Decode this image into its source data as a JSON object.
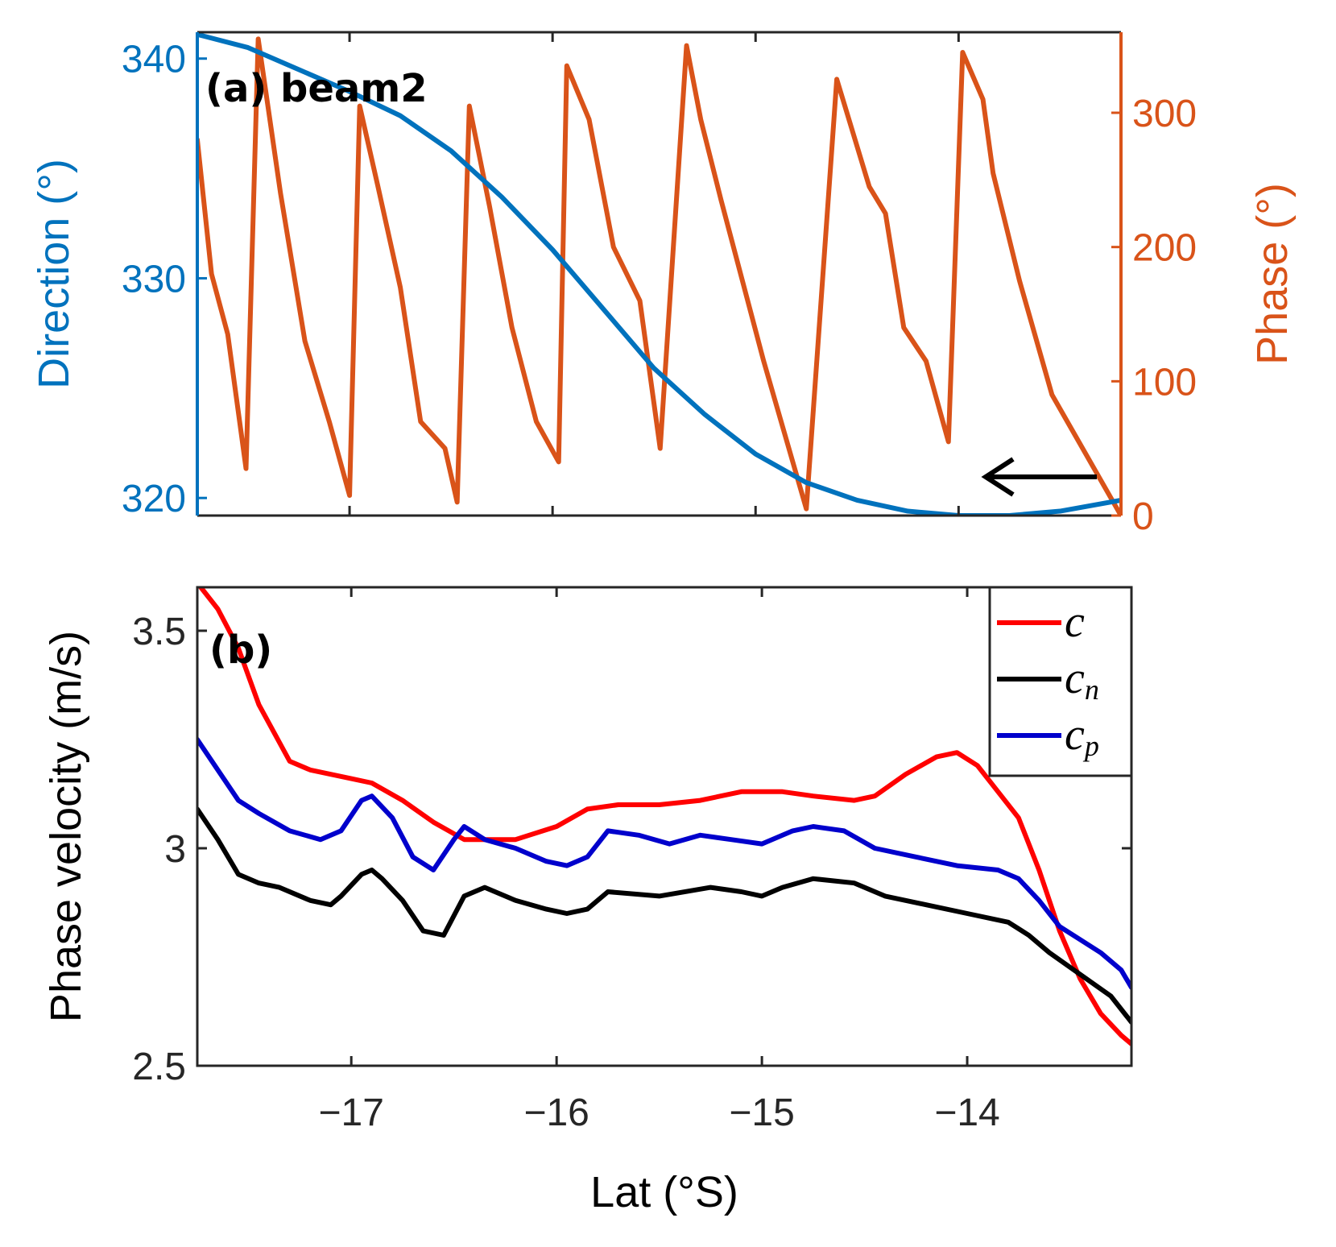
{
  "chart_data": [
    {
      "type": "line",
      "panel_label": "(a) beam2",
      "xlim": [
        -17.75,
        -13.2
      ],
      "colors": {
        "direction": "#0072BD",
        "phase": "#D95319",
        "arrow": "#000000"
      },
      "annotation": "arrow pointing left",
      "left_axis": {
        "label": "Direction (°)",
        "ylim": [
          319.2,
          341.2
        ],
        "ticks": [
          320,
          330,
          340
        ],
        "tick_labels": [
          "320",
          "330",
          "340"
        ]
      },
      "right_axis": {
        "label": "Phase (°)",
        "ylim": [
          0,
          360
        ],
        "ticks": [
          0,
          100,
          200,
          300
        ],
        "tick_labels": [
          "0",
          "100",
          "200",
          "300"
        ]
      },
      "series": [
        {
          "name": "Direction",
          "axis": "left",
          "x": [
            -17.75,
            -17.5,
            -17.25,
            -17.0,
            -16.75,
            -16.5,
            -16.25,
            -16.0,
            -15.75,
            -15.5,
            -15.25,
            -15.0,
            -14.75,
            -14.5,
            -14.25,
            -14.0,
            -13.75,
            -13.5,
            -13.2
          ],
          "y": [
            341.1,
            340.5,
            339.5,
            338.5,
            337.4,
            335.8,
            333.7,
            331.3,
            328.6,
            325.9,
            323.8,
            322.0,
            320.7,
            319.9,
            319.4,
            319.2,
            319.2,
            319.4,
            319.9
          ]
        },
        {
          "name": "Phase",
          "axis": "right",
          "x": [
            -17.75,
            -17.68,
            -17.6,
            -17.51,
            -17.45,
            -17.34,
            -17.22,
            -17.1,
            -17.0,
            -16.95,
            -16.86,
            -16.75,
            -16.65,
            -16.53,
            -16.47,
            -16.41,
            -16.31,
            -16.2,
            -16.08,
            -15.97,
            -15.93,
            -15.82,
            -15.7,
            -15.57,
            -15.47,
            -15.34,
            -15.27,
            -15.17,
            -14.96,
            -14.75,
            -14.6,
            -14.52,
            -14.44,
            -14.36,
            -14.27,
            -14.16,
            -14.05,
            -13.98,
            -13.88,
            -13.83,
            -13.7,
            -13.54,
            -13.2
          ],
          "y": [
            280,
            180,
            135,
            35,
            355,
            240,
            130,
            70,
            15,
            305,
            245,
            170,
            70,
            50,
            10,
            305,
            230,
            140,
            70,
            40,
            335,
            295,
            200,
            160,
            50,
            350,
            295,
            235,
            115,
            5,
            325,
            285,
            245,
            225,
            140,
            115,
            55,
            345,
            310,
            255,
            175,
            90,
            0
          ]
        }
      ]
    },
    {
      "type": "line",
      "panel_label": "(b)",
      "xlabel": "Lat (°S)",
      "ylabel": "Phase velocity (m/s)",
      "xlim": [
        -17.75,
        -13.2
      ],
      "ylim": [
        2.5,
        3.6
      ],
      "x_ticks": [
        -17,
        -16,
        -15,
        -14
      ],
      "x_tick_labels": [
        "−17",
        "−16",
        "−15",
        "−14"
      ],
      "y_ticks": [
        2.5,
        3.0,
        3.5
      ],
      "y_tick_labels": [
        "2.5",
        "3",
        "3.5"
      ],
      "legend_position": "top-right",
      "series": [
        {
          "name": "c",
          "legend_main": "c",
          "legend_sub": "",
          "color": "#FF0000",
          "x": [
            -17.75,
            -17.65,
            -17.55,
            -17.45,
            -17.3,
            -17.2,
            -17.1,
            -17.0,
            -16.9,
            -16.75,
            -16.6,
            -16.45,
            -16.3,
            -16.2,
            -16.0,
            -15.85,
            -15.7,
            -15.5,
            -15.3,
            -15.1,
            -15.0,
            -14.9,
            -14.75,
            -14.55,
            -14.45,
            -14.3,
            -14.15,
            -14.05,
            -13.95,
            -13.85,
            -13.75,
            -13.65,
            -13.55,
            -13.45,
            -13.35,
            -13.25,
            -13.2
          ],
          "y": [
            3.61,
            3.55,
            3.46,
            3.33,
            3.2,
            3.18,
            3.17,
            3.16,
            3.15,
            3.11,
            3.06,
            3.02,
            3.02,
            3.02,
            3.05,
            3.09,
            3.1,
            3.1,
            3.11,
            3.13,
            3.13,
            3.13,
            3.12,
            3.11,
            3.12,
            3.17,
            3.21,
            3.22,
            3.19,
            3.13,
            3.07,
            2.95,
            2.81,
            2.7,
            2.62,
            2.57,
            2.55
          ]
        },
        {
          "name": "cn",
          "legend_main": "c",
          "legend_sub": "n",
          "color": "#000000",
          "x": [
            -17.75,
            -17.65,
            -17.55,
            -17.45,
            -17.35,
            -17.2,
            -17.1,
            -17.05,
            -16.95,
            -16.9,
            -16.85,
            -16.75,
            -16.65,
            -16.55,
            -16.45,
            -16.35,
            -16.2,
            -16.05,
            -15.95,
            -15.85,
            -15.75,
            -15.5,
            -15.25,
            -15.1,
            -15.0,
            -14.9,
            -14.75,
            -14.55,
            -14.4,
            -14.2,
            -14.0,
            -13.8,
            -13.7,
            -13.6,
            -13.45,
            -13.3,
            -13.2
          ],
          "y": [
            3.09,
            3.02,
            2.94,
            2.92,
            2.91,
            2.88,
            2.87,
            2.89,
            2.94,
            2.95,
            2.93,
            2.88,
            2.81,
            2.8,
            2.89,
            2.91,
            2.88,
            2.86,
            2.85,
            2.86,
            2.9,
            2.89,
            2.91,
            2.9,
            2.89,
            2.91,
            2.93,
            2.92,
            2.89,
            2.87,
            2.85,
            2.83,
            2.8,
            2.76,
            2.71,
            2.66,
            2.6
          ]
        },
        {
          "name": "cp",
          "legend_main": "c",
          "legend_sub": "p",
          "color": "#0000CC",
          "x": [
            -17.75,
            -17.65,
            -17.55,
            -17.45,
            -17.3,
            -17.15,
            -17.05,
            -16.95,
            -16.9,
            -16.8,
            -16.7,
            -16.6,
            -16.5,
            -16.45,
            -16.35,
            -16.2,
            -16.05,
            -15.95,
            -15.85,
            -15.75,
            -15.6,
            -15.45,
            -15.3,
            -15.15,
            -15.0,
            -14.85,
            -14.75,
            -14.6,
            -14.45,
            -14.25,
            -14.05,
            -13.85,
            -13.75,
            -13.65,
            -13.55,
            -13.45,
            -13.35,
            -13.25,
            -13.2
          ],
          "y": [
            3.25,
            3.18,
            3.11,
            3.08,
            3.04,
            3.02,
            3.04,
            3.11,
            3.12,
            3.07,
            2.98,
            2.95,
            3.02,
            3.05,
            3.02,
            3.0,
            2.97,
            2.96,
            2.98,
            3.04,
            3.03,
            3.01,
            3.03,
            3.02,
            3.01,
            3.04,
            3.05,
            3.04,
            3.0,
            2.98,
            2.96,
            2.95,
            2.93,
            2.88,
            2.82,
            2.79,
            2.76,
            2.72,
            2.68
          ]
        }
      ]
    }
  ]
}
